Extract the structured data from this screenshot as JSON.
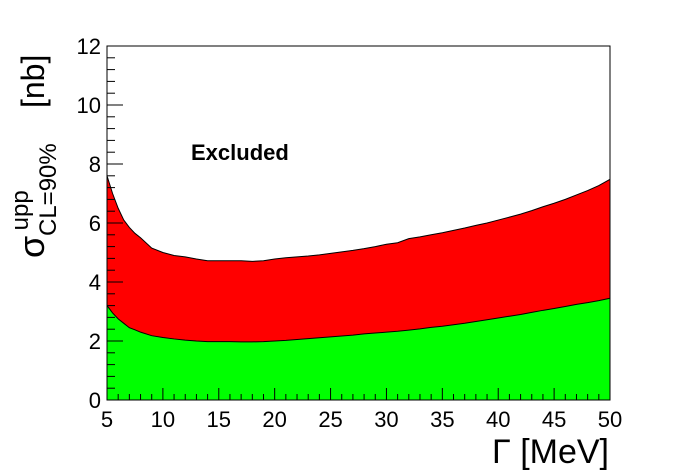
{
  "chart_data": {
    "type": "area",
    "xlabel": "Γ [MeV]",
    "ylabel": {
      "symbol": "σ",
      "superscript": "upp",
      "subscript": "CL=90%",
      "unit": "[nb]"
    },
    "xlim": [
      5,
      50
    ],
    "ylim": [
      0,
      12
    ],
    "x_ticks": [
      "5",
      "10",
      "15",
      "20",
      "25",
      "30",
      "35",
      "40",
      "45",
      "50"
    ],
    "y_ticks": [
      "0",
      "2",
      "4",
      "6",
      "8",
      "10",
      "12"
    ],
    "annotations": [
      "Excluded"
    ],
    "grid": false,
    "legend": "none",
    "series": [
      {
        "color": "#ff0000",
        "x": [
          5,
          5.5,
          6,
          6.5,
          7,
          7.5,
          8,
          9,
          10,
          11,
          12,
          13,
          14,
          15,
          16,
          17,
          18,
          19,
          20,
          21,
          22,
          23,
          24,
          25,
          26,
          27,
          28,
          29,
          30,
          31,
          32,
          33,
          34,
          35,
          36,
          37,
          38,
          39,
          40,
          41,
          42,
          43,
          44,
          45,
          46,
          47,
          48,
          49,
          50
        ],
        "values": [
          7.6,
          7.0,
          6.5,
          6.1,
          5.85,
          5.65,
          5.5,
          5.15,
          5.0,
          4.9,
          4.85,
          4.78,
          4.72,
          4.72,
          4.72,
          4.72,
          4.7,
          4.72,
          4.78,
          4.82,
          4.85,
          4.88,
          4.92,
          4.97,
          5.02,
          5.07,
          5.13,
          5.2,
          5.28,
          5.33,
          5.47,
          5.53,
          5.6,
          5.67,
          5.75,
          5.83,
          5.92,
          6.0,
          6.1,
          6.2,
          6.3,
          6.42,
          6.55,
          6.67,
          6.8,
          6.95,
          7.1,
          7.27,
          7.48
        ]
      },
      {
        "color": "#00ff00",
        "x": [
          5,
          5.5,
          6,
          6.5,
          7,
          7.5,
          8,
          9,
          10,
          11,
          12,
          13,
          14,
          15,
          16,
          17,
          18,
          19,
          20,
          21,
          22,
          23,
          24,
          25,
          26,
          27,
          28,
          29,
          30,
          31,
          32,
          33,
          34,
          35,
          36,
          37,
          38,
          39,
          40,
          41,
          42,
          43,
          44,
          45,
          46,
          47,
          48,
          49,
          50
        ],
        "values": [
          3.2,
          2.95,
          2.75,
          2.6,
          2.45,
          2.38,
          2.3,
          2.18,
          2.12,
          2.07,
          2.03,
          2.0,
          1.98,
          1.98,
          1.98,
          1.97,
          1.97,
          1.98,
          2.0,
          2.02,
          2.05,
          2.08,
          2.11,
          2.14,
          2.17,
          2.2,
          2.24,
          2.27,
          2.3,
          2.33,
          2.37,
          2.41,
          2.46,
          2.5,
          2.55,
          2.6,
          2.66,
          2.72,
          2.78,
          2.84,
          2.9,
          2.97,
          3.04,
          3.1,
          3.17,
          3.24,
          3.3,
          3.37,
          3.45
        ]
      }
    ]
  }
}
